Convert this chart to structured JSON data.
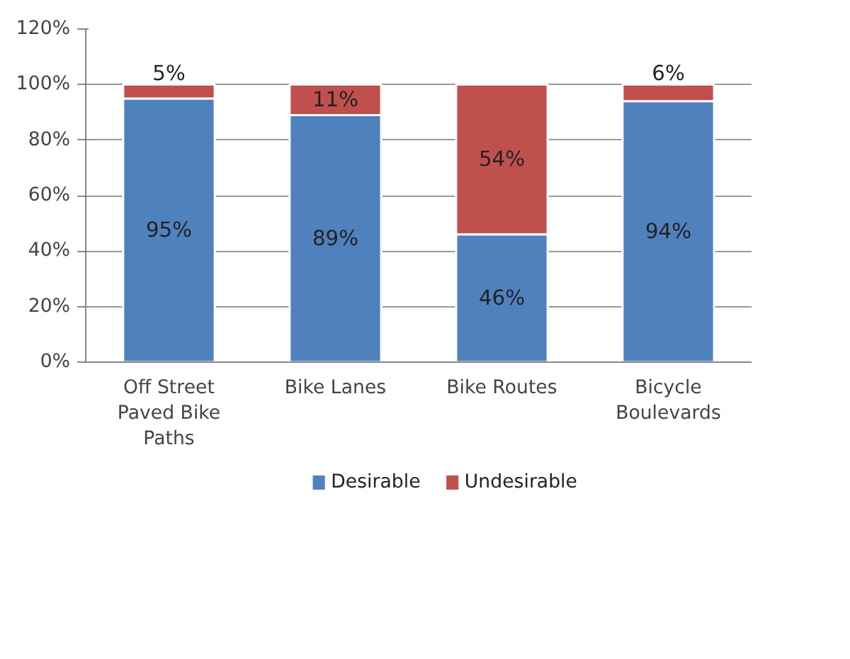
{
  "chart_data": {
    "type": "bar",
    "stacked": true,
    "categories": [
      "Off Street Paved Bike Paths",
      "Bike Lanes",
      "Bike Routes",
      "Bicycle Boulevards"
    ],
    "series": [
      {
        "name": "Desirable",
        "color": "#4f81bd",
        "values": [
          95,
          89,
          46,
          94
        ],
        "value_labels": [
          "95%",
          "89%",
          "46%",
          "94%"
        ]
      },
      {
        "name": "Undesirable",
        "color": "#c0504d",
        "values": [
          5,
          11,
          54,
          6
        ],
        "value_labels": [
          "5%",
          "11%",
          "54%",
          "6%"
        ]
      }
    ],
    "ylim": [
      0,
      120
    ],
    "yticks": [
      {
        "value": 0,
        "label": "0%"
      },
      {
        "value": 20,
        "label": "20%"
      },
      {
        "value": 40,
        "label": "40%"
      },
      {
        "value": 60,
        "label": "60%"
      },
      {
        "value": 80,
        "label": "80%"
      },
      {
        "value": 100,
        "label": "100%"
      },
      {
        "value": 120,
        "label": "120%"
      }
    ],
    "grid": "y",
    "legend": "bottom"
  }
}
